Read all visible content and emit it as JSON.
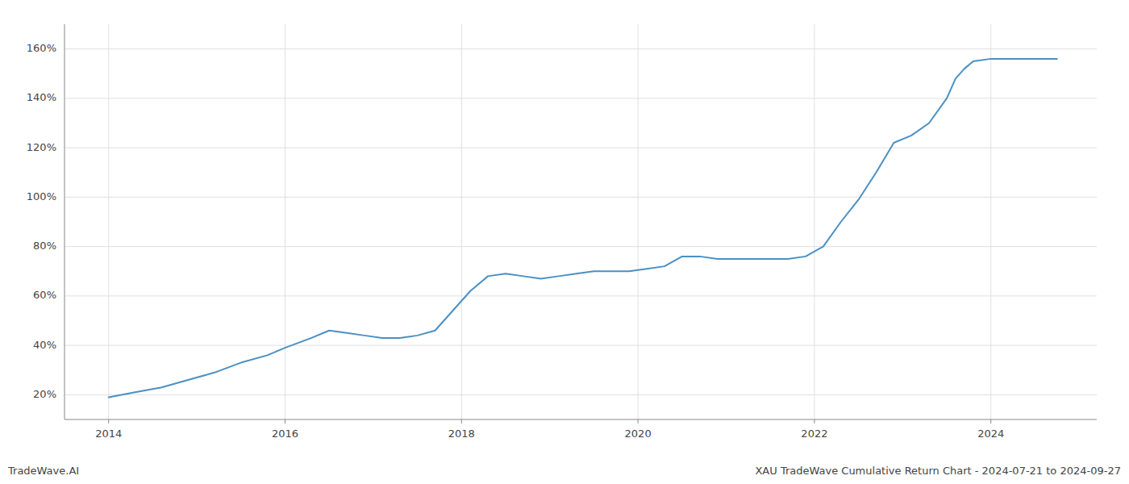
{
  "chart_data": {
    "type": "line",
    "title": "XAU TradeWave Cumulative Return Chart - 2024-07-21 to 2024-09-27",
    "annotations": [
      "TradeWave.AI"
    ],
    "color": "#4a90c4",
    "x": [
      2014.0,
      2014.3,
      2014.6,
      2014.9,
      2015.2,
      2015.5,
      2015.8,
      2016.0,
      2016.3,
      2016.5,
      2016.7,
      2016.9,
      2017.1,
      2017.3,
      2017.5,
      2017.7,
      2017.9,
      2018.1,
      2018.3,
      2018.5,
      2018.7,
      2018.9,
      2019.1,
      2019.3,
      2019.5,
      2019.7,
      2019.9,
      2020.1,
      2020.3,
      2020.5,
      2020.7,
      2020.9,
      2021.1,
      2021.3,
      2021.5,
      2021.7,
      2021.9,
      2022.1,
      2022.3,
      2022.5,
      2022.7,
      2022.9,
      2023.1,
      2023.3,
      2023.5,
      2023.6,
      2023.7,
      2023.8,
      2024.0,
      2024.3,
      2024.6,
      2024.75
    ],
    "values": [
      19,
      21,
      23,
      26,
      29,
      33,
      36,
      39,
      43,
      46,
      45,
      44,
      43,
      43,
      44,
      46,
      54,
      62,
      68,
      69,
      68,
      67,
      68,
      69,
      70,
      70,
      70,
      71,
      72,
      76,
      76,
      75,
      75,
      75,
      75,
      75,
      76,
      80,
      90,
      99,
      110,
      122,
      125,
      130,
      140,
      148,
      152,
      155,
      156,
      156,
      156,
      156
    ],
    "xlim": [
      2013.5,
      2025.2
    ],
    "ylim": [
      10,
      170
    ],
    "xticks": [
      2014,
      2016,
      2018,
      2020,
      2022,
      2024
    ],
    "yticks": [
      {
        "value": 20,
        "label": "20%"
      },
      {
        "value": 40,
        "label": "40%"
      },
      {
        "value": 60,
        "label": "60%"
      },
      {
        "value": 80,
        "label": "80%"
      },
      {
        "value": 100,
        "label": "100%"
      },
      {
        "value": 120,
        "label": "120%"
      },
      {
        "value": 140,
        "label": "140%"
      },
      {
        "value": 160,
        "label": "160%"
      }
    ],
    "grid": true
  }
}
